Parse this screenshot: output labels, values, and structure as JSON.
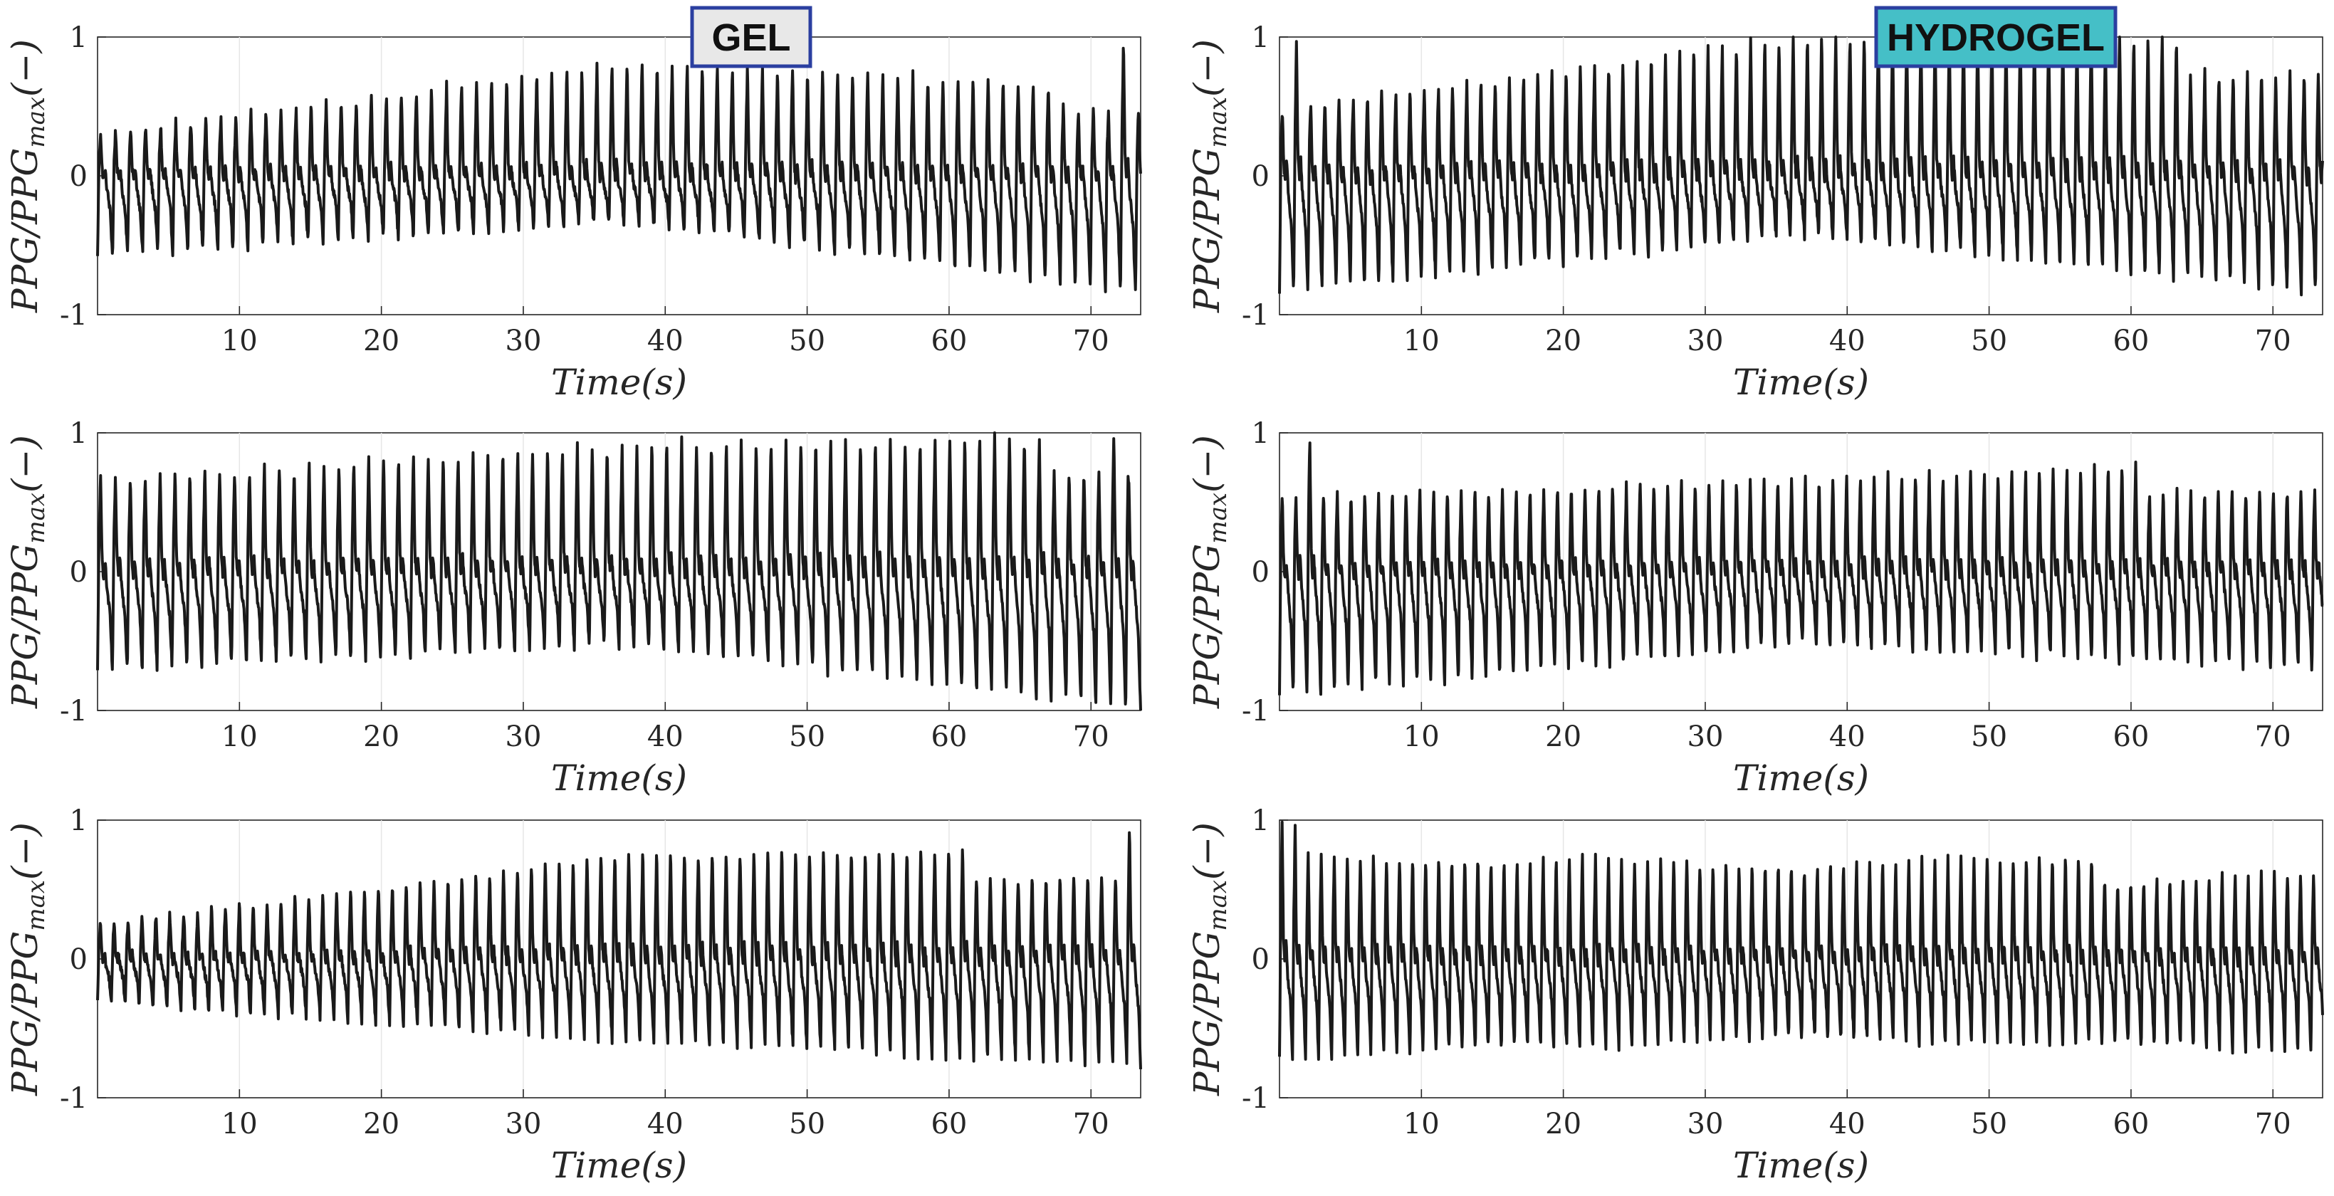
{
  "colors": {
    "trace": "#1a1a1a",
    "axes": "#262626",
    "grid": "#e6e6e6",
    "gel_label_bg": "#e8e8e8",
    "hydrogel_label_bg": "#45bfc7",
    "label_border": "#2b3fa0"
  },
  "labels": {
    "gel": "GEL",
    "hydrogel": "HYDROGEL"
  },
  "chart_data": [
    {
      "type": "line",
      "column": "GEL",
      "row": 1,
      "xlabel": "Time(s)",
      "ylabel": "PPG/PPGmax(−)",
      "xlim": [
        0,
        73.5
      ],
      "ylim": [
        -1,
        1
      ],
      "xticks": [
        10,
        20,
        30,
        40,
        50,
        60,
        70
      ],
      "yticks": [
        -1,
        0,
        1
      ],
      "grid": "x-only",
      "beat_period_s": 1.06,
      "peak_y": [
        0.35,
        0.8,
        0.55
      ],
      "trough_y": [
        -0.65,
        -0.35,
        -0.85
      ],
      "max_peak_time_s": 72.5
    },
    {
      "type": "line",
      "column": "HYDROGEL",
      "row": 1,
      "xlabel": "Time(s)",
      "ylabel": "PPG/PPGmax(−)",
      "xlim": [
        0,
        73.5
      ],
      "ylim": [
        -1,
        1
      ],
      "xticks": [
        10,
        20,
        30,
        40,
        50,
        60,
        70
      ],
      "yticks": [
        -1,
        0,
        1
      ],
      "grid": "x-only",
      "beat_period_s": 1.0,
      "peak_y": [
        0.55,
        1.0,
        0.85
      ],
      "trough_y": [
        -0.95,
        -0.45,
        -0.85
      ],
      "max_peak_time_s": 1.0
    },
    {
      "type": "line",
      "column": "GEL",
      "row": 2,
      "xlabel": "Time(s)",
      "ylabel": "PPG/PPGmax(−)",
      "xlim": [
        0,
        73.5
      ],
      "ylim": [
        -1,
        1
      ],
      "xticks": [
        10,
        20,
        30,
        40,
        50,
        60,
        70
      ],
      "yticks": [
        -1,
        0,
        1
      ],
      "grid": "x-only",
      "beat_period_s": 1.05,
      "peak_y": [
        0.75,
        0.9,
        0.85
      ],
      "trough_y": [
        -0.8,
        -0.55,
        -1.0
      ],
      "max_peak_time_s": 72.0
    },
    {
      "type": "line",
      "column": "HYDROGEL",
      "row": 2,
      "xlabel": "Time(s)",
      "ylabel": "PPG/PPGmax(−)",
      "xlim": [
        0,
        73.5
      ],
      "ylim": [
        -1,
        1
      ],
      "xticks": [
        10,
        20,
        30,
        40,
        50,
        60,
        70
      ],
      "yticks": [
        -1,
        0,
        1
      ],
      "grid": "x-only",
      "beat_period_s": 0.97,
      "peak_y": [
        0.6,
        0.65,
        0.7
      ],
      "trough_y": [
        -1.0,
        -0.55,
        -0.7
      ],
      "max_peak_time_s": 2.0
    },
    {
      "type": "line",
      "column": "GEL",
      "row": 3,
      "xlabel": "Time(s)",
      "ylabel": "PPG/PPGmax(−)",
      "xlim": [
        0,
        73.5
      ],
      "ylim": [
        -1,
        1
      ],
      "xticks": [
        10,
        20,
        30,
        40,
        50,
        60,
        70
      ],
      "yticks": [
        -1,
        0,
        1
      ],
      "grid": "x-only",
      "beat_period_s": 0.98,
      "peak_y": [
        0.3,
        0.75,
        0.7
      ],
      "trough_y": [
        -0.35,
        -0.6,
        -0.75
      ],
      "max_peak_time_s": 72.8
    },
    {
      "type": "line",
      "column": "HYDROGEL",
      "row": 3,
      "xlabel": "Time(s)",
      "ylabel": "PPG/PPGmax(−)",
      "xlim": [
        0,
        73.5
      ],
      "ylim": [
        -1,
        1
      ],
      "xticks": [
        10,
        20,
        30,
        40,
        50,
        60,
        70
      ],
      "yticks": [
        -1,
        0,
        1
      ],
      "grid": "x-only",
      "beat_period_s": 0.92,
      "peak_y": [
        0.85,
        0.65,
        0.7
      ],
      "trough_y": [
        -0.8,
        -0.6,
        -0.65
      ],
      "max_peak_time_s": 0.6
    }
  ]
}
